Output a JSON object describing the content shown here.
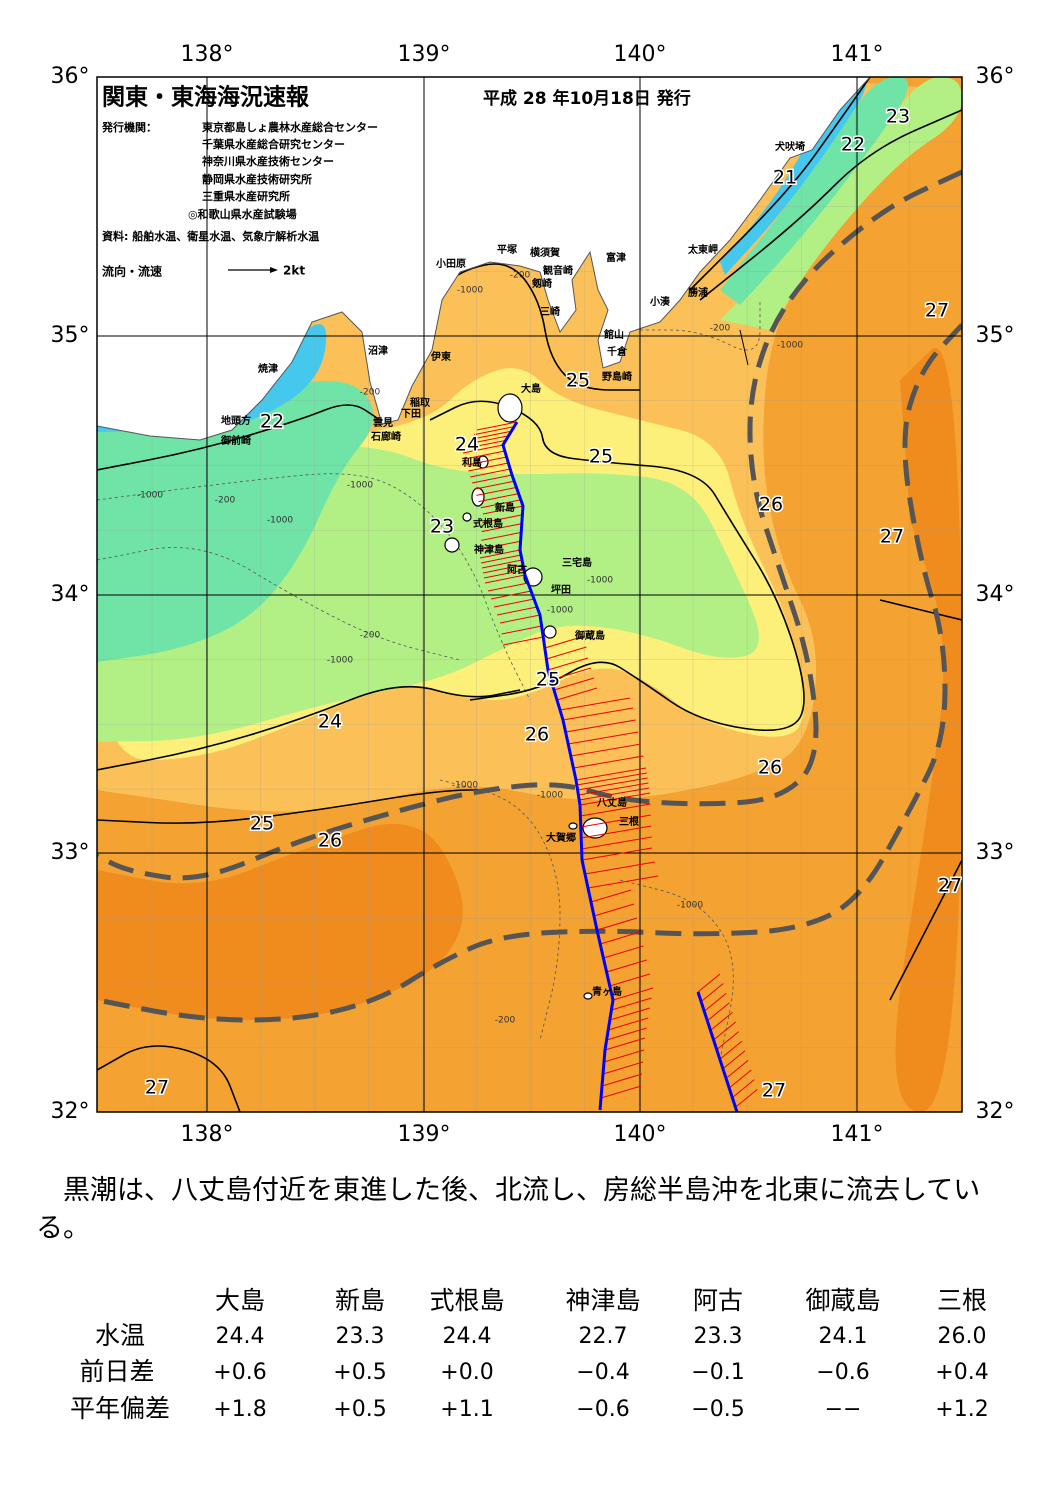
{
  "header": {
    "title": "関東・東海海況速報",
    "date": "平成 28 年10月18日 発行",
    "publisher_label": "発行機関：",
    "publishers": [
      "東京都島しょ農林水産総合センター",
      "千葉県水産総合研究センター",
      "神奈川県水産技術センター",
      "静岡県水産技術研究所",
      "三重県水産研究所",
      "◎和歌山県水産試験場"
    ],
    "source": "資料: 船舶水温、衛星水温、気象庁解析水温",
    "legend": "流向・流速",
    "legend_scale": "2kt"
  },
  "map": {
    "lon_labels": [
      "138°",
      "139°",
      "140°",
      "141°"
    ],
    "lat_labels": [
      "36°",
      "35°",
      "34°",
      "33°",
      "32°"
    ],
    "isotherm_labels": [
      "23",
      "22",
      "21",
      "27",
      "25",
      "22",
      "24",
      "25",
      "26",
      "23",
      "27",
      "25",
      "24",
      "26",
      "26",
      "25",
      "26",
      "27",
      "27",
      "27"
    ],
    "place_names": [
      "犬吠埼",
      "太東岬",
      "勝浦",
      "小湊",
      "富津",
      "横須賀",
      "平塚",
      "小田原",
      "観音崎",
      "剱崎",
      "三崎",
      "館山",
      "千倉",
      "野島崎",
      "沼津",
      "伊東",
      "焼津",
      "大島",
      "稲取",
      "下田",
      "雲見",
      "石廊崎",
      "地頭方",
      "御前崎",
      "利島",
      "新島",
      "式根島",
      "神津島",
      "三宅島",
      "阿古",
      "坪田",
      "御蔵島",
      "八丈島",
      "三根",
      "大賀郷",
      "青ヶ島"
    ],
    "depth_labels": [
      "-200",
      "-1000",
      "-200",
      "-1000",
      "-1000",
      "-200",
      "-1000",
      "-1000",
      "-200",
      "-1000",
      "-1000",
      "-200",
      "-1000",
      "-1000",
      "-1000",
      "-1000",
      "-200"
    ]
  },
  "summary": "黒潮は、八丈島付近を東進した後、北流し、房総半島沖を北東に流去している。",
  "table": {
    "columns": [
      "大島",
      "新島",
      "式根島",
      "神津島",
      "阿古",
      "御蔵島",
      "三根"
    ],
    "rows": [
      [
        "水温",
        "24.4",
        "23.3",
        "24.4",
        "22.7",
        "23.3",
        "24.1",
        "26.0"
      ],
      [
        "前日差",
        "+0.6",
        "+0.5",
        "+0.0",
        "−0.4",
        "−0.1",
        "−0.6",
        "+0.4"
      ],
      [
        "平年偏差",
        "+1.8",
        "+0.5",
        "+1.1",
        "−0.6",
        "−0.5",
        "−−",
        "+1.2"
      ]
    ]
  }
}
